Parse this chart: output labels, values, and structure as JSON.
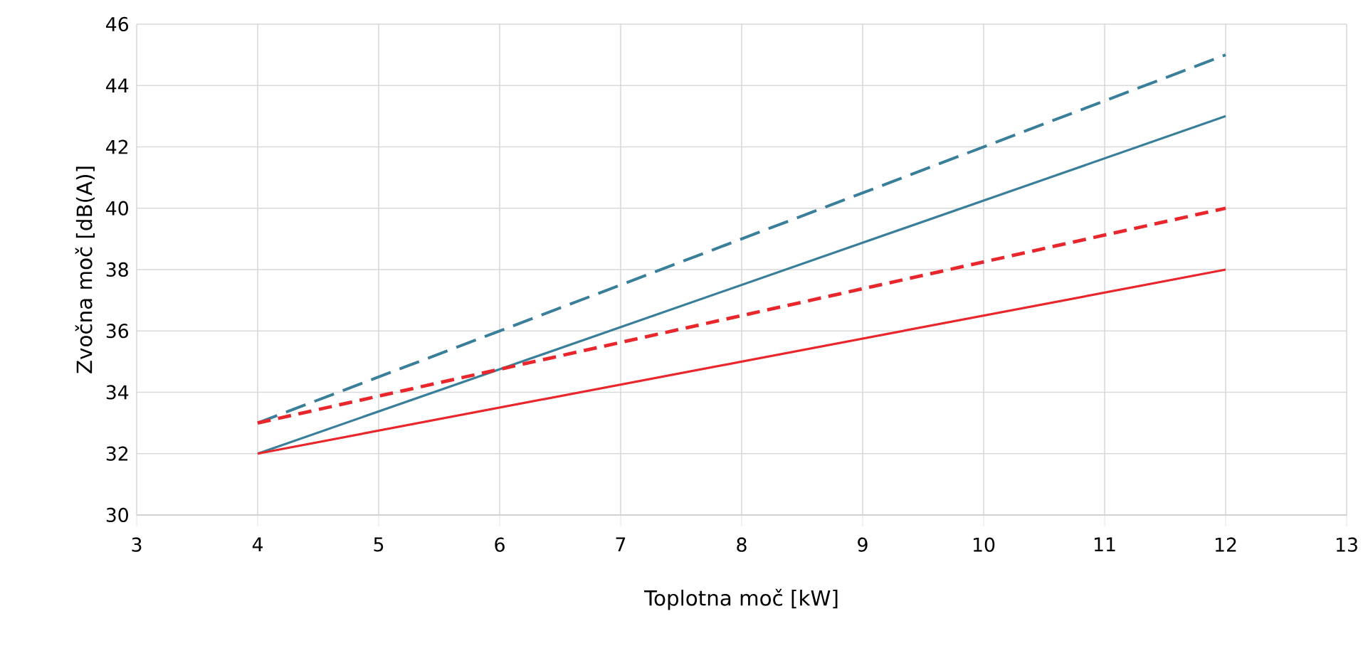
{
  "chart_data": {
    "type": "line",
    "xlabel": "Toplotna moč [kW]",
    "ylabel": "Zvočna moč [dB(A)]",
    "x": [
      4,
      12
    ],
    "series": [
      {
        "color": "#3a7f9a",
        "line_style": "dashed",
        "values": [
          33,
          45
        ]
      },
      {
        "color": "#3a7f9a",
        "line_style": "solid",
        "values": [
          32,
          43
        ]
      },
      {
        "color": "#e8262b",
        "line_style": "dashed",
        "values": [
          33,
          40
        ]
      },
      {
        "color": "#e8262b",
        "line_style": "solid",
        "values": [
          32,
          38
        ]
      }
    ],
    "xlim": [
      3,
      13
    ],
    "ylim": [
      30,
      46
    ],
    "xticks": [
      3,
      4,
      5,
      6,
      7,
      8,
      9,
      10,
      11,
      12,
      13
    ],
    "yticks": [
      30,
      32,
      34,
      36,
      38,
      40,
      42,
      44,
      46
    ],
    "grid": true,
    "marker": "none"
  }
}
